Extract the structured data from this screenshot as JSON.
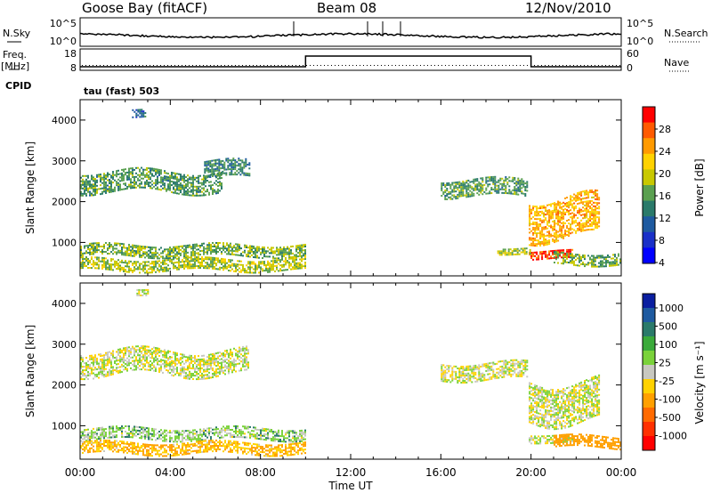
{
  "header": {
    "station": "Goose Bay (fitACF)",
    "beam": "Beam 08",
    "date": "12/Nov/2010"
  },
  "panels": {
    "nsky_label": "N.Sky",
    "nsky_ticks": [
      "10^5",
      "10^0"
    ],
    "nsearch_label": "N.Search",
    "nsearch_ticks": [
      "10^5",
      "10^0"
    ],
    "freq_label": "Freq.",
    "freq_unit": "[MHz]",
    "freq_ticks": [
      "18",
      "8"
    ],
    "nave_label": "Nave",
    "nave_ticks": [
      "60",
      "0"
    ],
    "cpid_label": "CPID",
    "cpid_text": "tau (fast) 503"
  },
  "colorbars": {
    "power": {
      "label": "Power [dB]",
      "ticks": [
        "28",
        "24",
        "20",
        "16",
        "12",
        "8",
        "4"
      ],
      "colors": [
        "#ff0000",
        "#ff5a00",
        "#ff9a00",
        "#ffd200",
        "#c8c800",
        "#5aa050",
        "#2a7a6a",
        "#1e5aa0",
        "#1a30c8",
        "#0000ff"
      ]
    },
    "velocity": {
      "label": "Velocity [m s⁻¹]",
      "ticks": [
        "1000",
        "500",
        "100",
        "25",
        "-25",
        "-100",
        "-500",
        "-1000"
      ],
      "colors": [
        "#0a1ea0",
        "#1e5aa0",
        "#2a7a6a",
        "#3aaa3a",
        "#7ad23a",
        "#c8c8c0",
        "#ffd200",
        "#ffa000",
        "#ff6a00",
        "#ff3000",
        "#ff0000"
      ]
    }
  },
  "chart_data": [
    {
      "type": "heatmap",
      "title": "Power",
      "ylabel": "Slant Range [km]",
      "xlabel": "Time UT",
      "xticks": [
        "00:00",
        "04:00",
        "08:00",
        "12:00",
        "16:00",
        "20:00",
        "00:00"
      ],
      "yticks": [
        1000,
        2000,
        3000,
        4000
      ],
      "xlim_hours": [
        0,
        24
      ],
      "ylim_km": [
        180,
        4500
      ],
      "regions": [
        {
          "t0": 0.0,
          "t1": 6.3,
          "r_center": 2500,
          "r_half": 250,
          "value": 12
        },
        {
          "t0": 5.5,
          "t1": 7.5,
          "r_center": 2800,
          "r_half": 200,
          "value": 10
        },
        {
          "t0": 0.0,
          "t1": 10.0,
          "r_center": 800,
          "r_half": 150,
          "value": 14
        },
        {
          "t0": 0.0,
          "t1": 10.0,
          "r_center": 450,
          "r_half": 150,
          "value": 16
        },
        {
          "t0": 2.3,
          "t1": 2.9,
          "r_center": 4200,
          "r_half": 100,
          "value": 8
        },
        {
          "t0": 16.0,
          "t1": 19.8,
          "r_center": 2350,
          "r_half": 200,
          "value": 12
        },
        {
          "t0": 19.9,
          "t1": 23.0,
          "r_center": 1600,
          "r_half": 500,
          "value": 22
        },
        {
          "t0": 19.9,
          "t1": 21.8,
          "r_center": 700,
          "r_half": 100,
          "value": 28
        },
        {
          "t0": 18.5,
          "t1": 20.0,
          "r_center": 800,
          "r_half": 80,
          "value": 16
        },
        {
          "t0": 21.0,
          "t1": 24.0,
          "r_center": 600,
          "r_half": 150,
          "value": 14
        }
      ]
    },
    {
      "type": "heatmap",
      "title": "Velocity",
      "ylabel": "Slant Range [km]",
      "xlabel": "Time UT",
      "xticks": [
        "00:00",
        "04:00",
        "08:00",
        "12:00",
        "16:00",
        "20:00",
        "00:00"
      ],
      "yticks": [
        1000,
        2000,
        3000,
        4000
      ],
      "xlim_hours": [
        0,
        24
      ],
      "ylim_km": [
        180,
        4500
      ],
      "regions": [
        {
          "t0": 0.0,
          "t1": 7.5,
          "r_center": 2550,
          "r_half": 300,
          "value": 0
        },
        {
          "t0": 0.0,
          "t1": 10.0,
          "r_center": 800,
          "r_half": 150,
          "value": 50
        },
        {
          "t0": 0.0,
          "t1": 10.0,
          "r_center": 450,
          "r_half": 150,
          "value": -100
        },
        {
          "t0": 2.5,
          "t1": 3.0,
          "r_center": 4300,
          "r_half": 80,
          "value": 0
        },
        {
          "t0": 16.0,
          "t1": 19.8,
          "r_center": 2350,
          "r_half": 200,
          "value": 0
        },
        {
          "t0": 19.9,
          "t1": 23.0,
          "r_center": 1600,
          "r_half": 500,
          "value": 0
        },
        {
          "t0": 19.9,
          "t1": 21.8,
          "r_center": 700,
          "r_half": 100,
          "value": 0
        },
        {
          "t0": 21.0,
          "t1": 24.0,
          "r_center": 600,
          "r_half": 150,
          "value": -200
        }
      ]
    }
  ]
}
